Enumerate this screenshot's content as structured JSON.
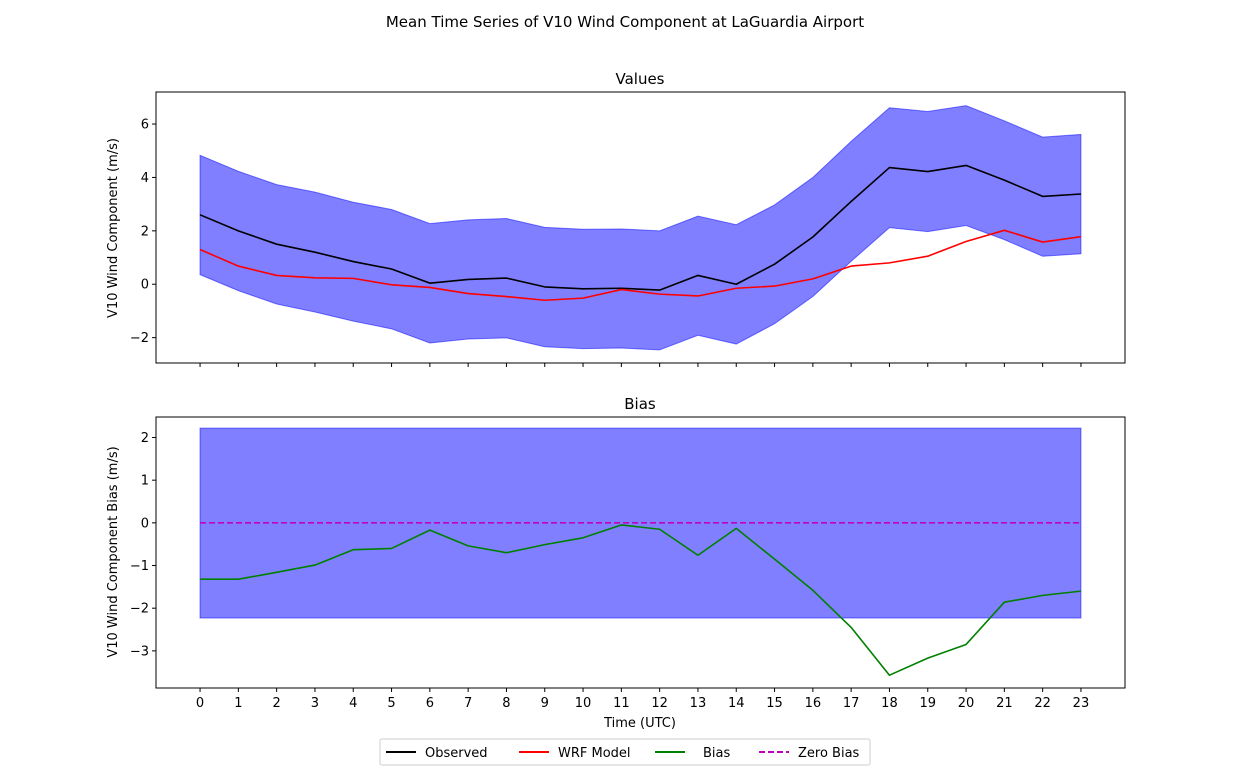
{
  "figure": {
    "title": "Mean Time Series of V10 Wind Component at LaGuardia Airport"
  },
  "colors": {
    "observed": "#000000",
    "wrf": "#ff0000",
    "bias": "#008000",
    "zero_bias": "#bf00bf",
    "band": "#0000ff"
  },
  "legend": {
    "placement": "bottom-center",
    "entries": [
      "Observed",
      "WRF Model",
      "Bias",
      "Zero Bias"
    ]
  },
  "chart_data": [
    {
      "type": "line",
      "title": "Values",
      "xlabel": "",
      "ylabel": "V10 Wind Component (m/s)",
      "x": [
        0,
        1,
        2,
        3,
        4,
        5,
        6,
        7,
        8,
        9,
        10,
        11,
        12,
        13,
        14,
        15,
        16,
        17,
        18,
        19,
        20,
        21,
        22,
        23
      ],
      "xlim": [
        -1.15,
        24.15
      ],
      "ylim": [
        -2.95,
        7.2
      ],
      "yticks": [
        -2,
        0,
        2,
        4,
        6
      ],
      "series": [
        {
          "name": "Observed",
          "color": "#000000",
          "values": [
            2.6,
            2.0,
            1.5,
            1.2,
            0.85,
            0.57,
            0.04,
            0.18,
            0.23,
            -0.1,
            -0.17,
            -0.15,
            -0.22,
            0.33,
            0.0,
            0.75,
            1.77,
            3.1,
            4.37,
            4.22,
            4.45,
            3.9,
            3.29,
            3.38
          ]
        },
        {
          "name": "WRF Model",
          "color": "#ff0000",
          "values": [
            1.3,
            0.68,
            0.33,
            0.24,
            0.22,
            -0.02,
            -0.12,
            -0.35,
            -0.46,
            -0.6,
            -0.52,
            -0.2,
            -0.37,
            -0.44,
            -0.15,
            -0.07,
            0.2,
            0.68,
            0.8,
            1.05,
            1.6,
            2.02,
            1.58,
            1.78
          ]
        }
      ],
      "band": {
        "color": "#0000ff",
        "upper": [
          4.83,
          4.23,
          3.73,
          3.45,
          3.07,
          2.8,
          2.27,
          2.41,
          2.46,
          2.13,
          2.06,
          2.07,
          2.0,
          2.55,
          2.23,
          2.97,
          4.0,
          5.35,
          6.61,
          6.47,
          6.69,
          6.12,
          5.51,
          5.61
        ],
        "lower": [
          0.36,
          -0.24,
          -0.74,
          -1.04,
          -1.38,
          -1.67,
          -2.2,
          -2.05,
          -2.01,
          -2.34,
          -2.41,
          -2.39,
          -2.46,
          -1.91,
          -2.24,
          -1.48,
          -0.46,
          0.86,
          2.12,
          1.97,
          2.2,
          1.67,
          1.05,
          1.14
        ]
      }
    },
    {
      "type": "line",
      "title": "Bias",
      "xlabel": "Time (UTC)",
      "ylabel": "V10 Wind Component Bias (m/s)",
      "x": [
        0,
        1,
        2,
        3,
        4,
        5,
        6,
        7,
        8,
        9,
        10,
        11,
        12,
        13,
        14,
        15,
        16,
        17,
        18,
        19,
        20,
        21,
        22,
        23
      ],
      "xlim": [
        -1.15,
        24.15
      ],
      "ylim": [
        -3.87,
        2.48
      ],
      "yticks": [
        -3,
        -2,
        -1,
        0,
        1,
        2
      ],
      "series": [
        {
          "name": "Bias",
          "color": "#008000",
          "values": [
            -1.32,
            -1.32,
            -1.16,
            -0.99,
            -0.63,
            -0.6,
            -0.17,
            -0.54,
            -0.7,
            -0.51,
            -0.35,
            -0.05,
            -0.15,
            -0.76,
            -0.13,
            -0.85,
            -1.58,
            -2.45,
            -3.57,
            -3.17,
            -2.85,
            -1.86,
            -1.7,
            -1.6
          ]
        },
        {
          "name": "Zero Bias",
          "color": "#bf00bf",
          "dashed": true,
          "values": [
            0,
            0,
            0,
            0,
            0,
            0,
            0,
            0,
            0,
            0,
            0,
            0,
            0,
            0,
            0,
            0,
            0,
            0,
            0,
            0,
            0,
            0,
            0,
            0
          ]
        }
      ],
      "band": {
        "color": "#0000ff",
        "upper_constant": 2.22,
        "lower_constant": -2.23
      }
    }
  ]
}
